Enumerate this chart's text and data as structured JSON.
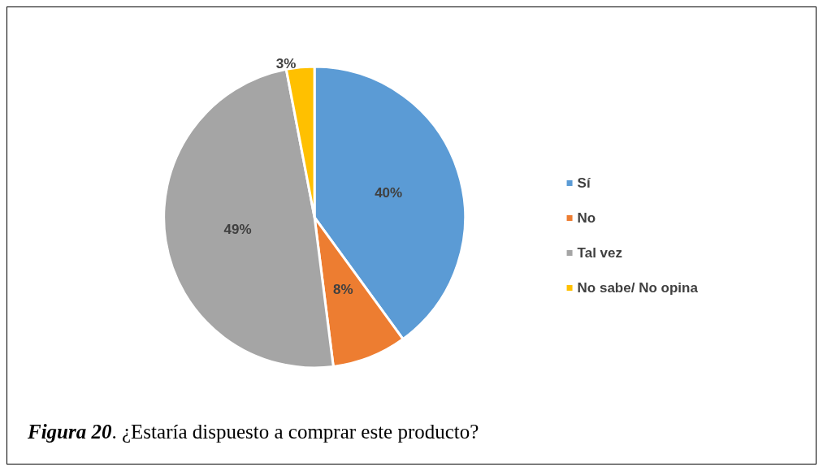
{
  "chart_data": {
    "type": "pie",
    "categories": [
      "Sí",
      "No",
      "Tal vez",
      "No sabe/ No opina"
    ],
    "values": [
      40,
      8,
      49,
      3
    ],
    "colors": [
      "#5b9bd5",
      "#ed7d31",
      "#a5a5a5",
      "#ffc000"
    ],
    "value_labels": [
      "40%",
      "8%",
      "49%",
      "3%"
    ],
    "legend": "right",
    "annotations": [
      "Figura 20. ¿Estaría dispuesto a comprar este producto?"
    ]
  }
}
